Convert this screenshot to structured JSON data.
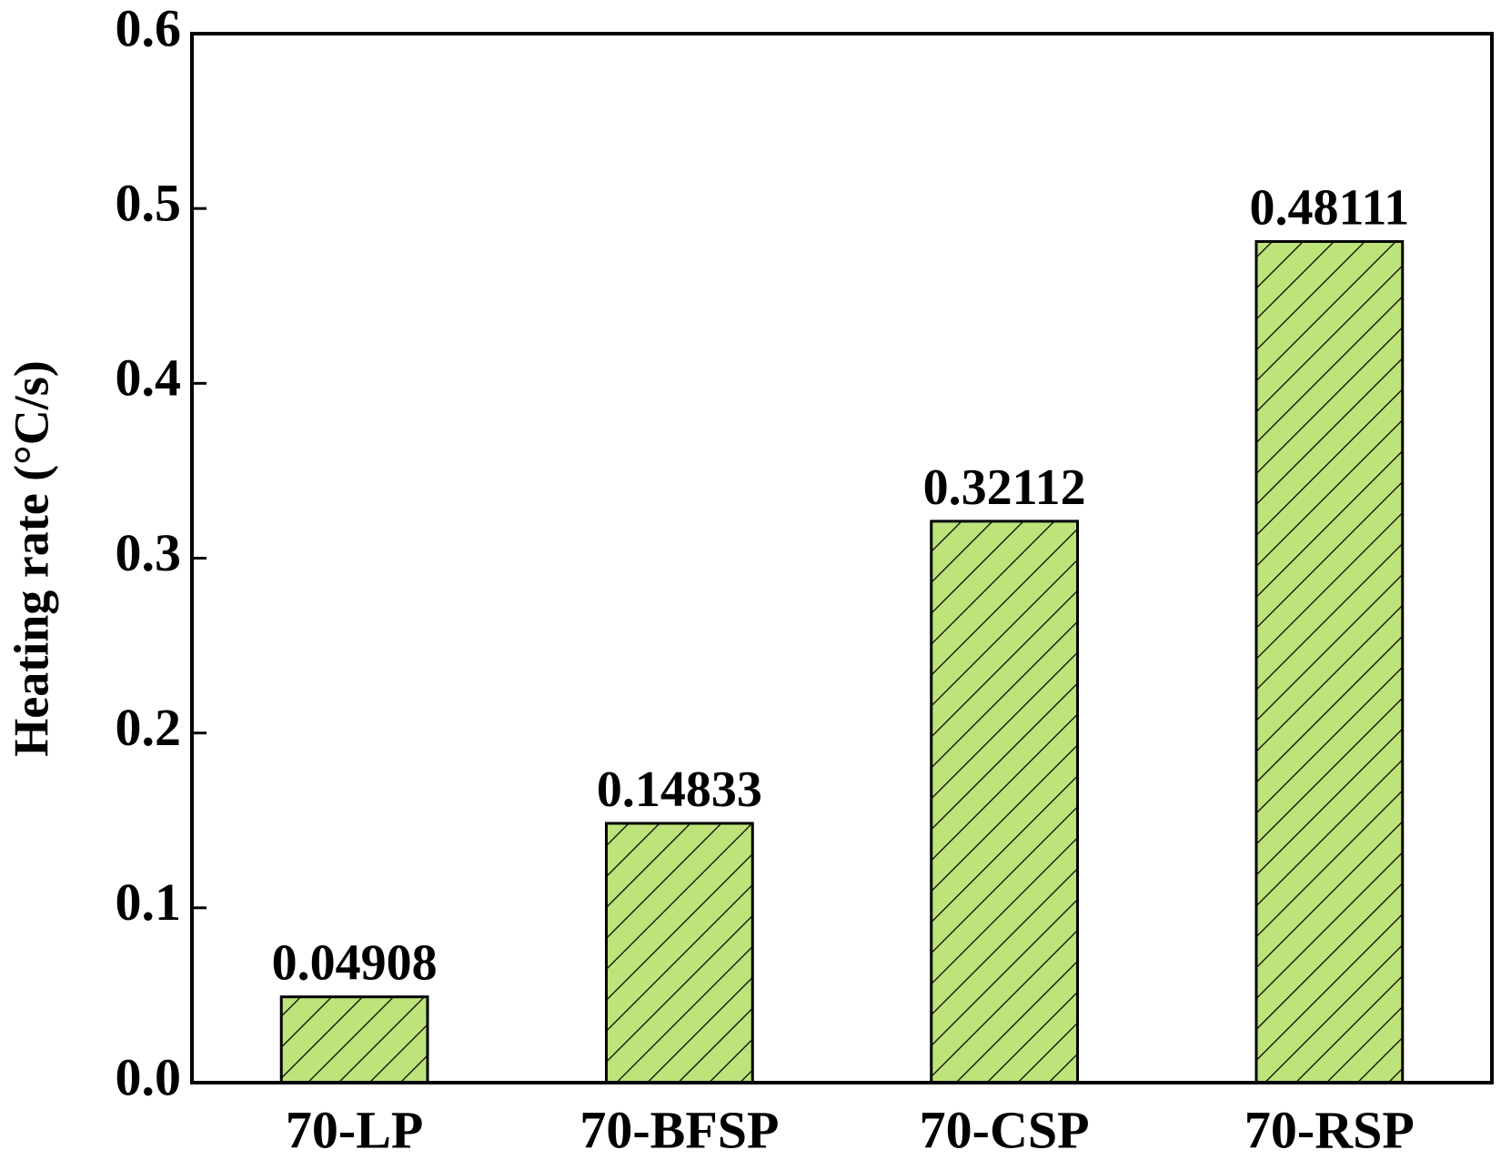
{
  "chart_data": {
    "type": "bar",
    "y_label": "Heating rate (°C/s)",
    "categories": [
      "70-LP",
      "70-BFSP",
      "70-CSP",
      "70-RSP"
    ],
    "values": [
      0.04908,
      0.14833,
      0.32112,
      0.48111
    ],
    "color": "#bde37a",
    "ylim": [
      0,
      0.6
    ],
    "yticks": [
      {
        "value": 0,
        "label": "0.0"
      },
      0.1,
      0.2,
      0.3,
      0.4,
      0.5,
      0.6
    ],
    "hatch": true
  }
}
